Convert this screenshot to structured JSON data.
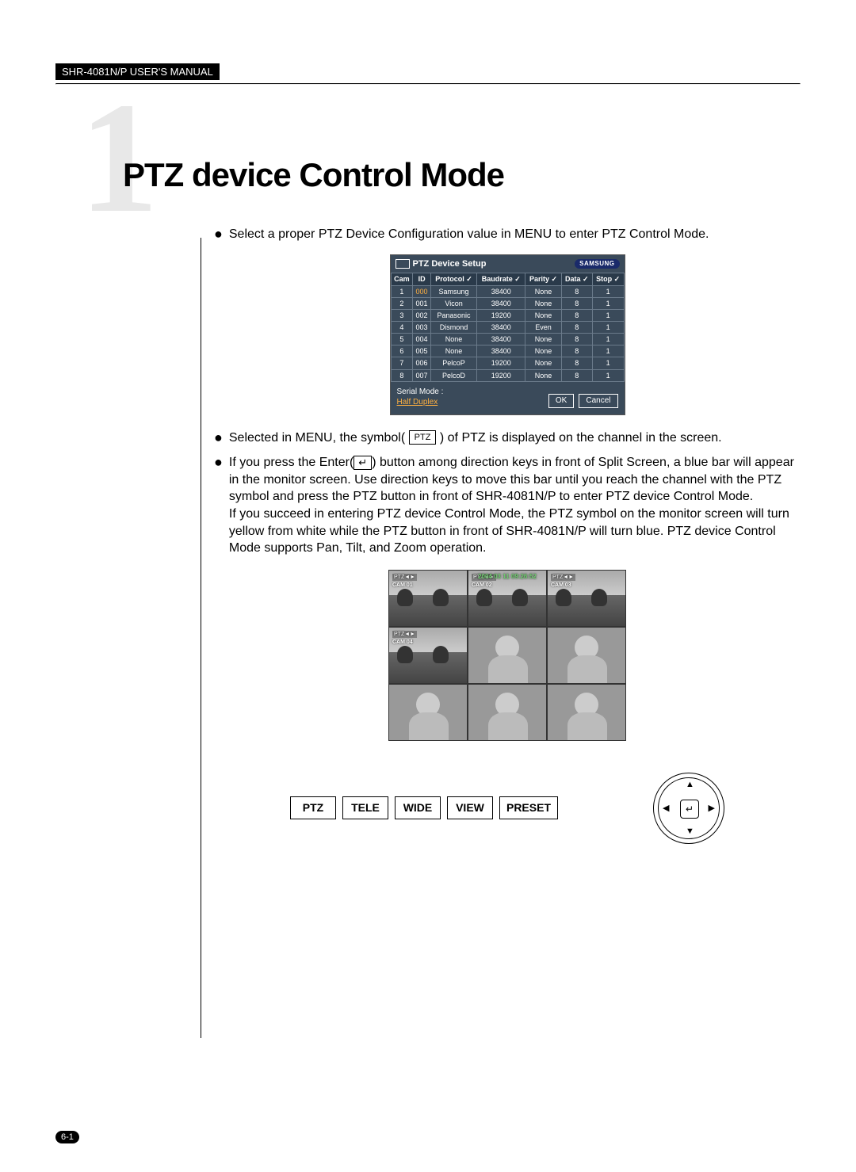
{
  "header": "SHR-4081N/P USER'S MANUAL",
  "chapter_number": "1",
  "title": "PTZ device Control Mode",
  "page_number": "6-1",
  "bullet1": "Select a proper PTZ Device Configuration value in MENU to enter PTZ Control Mode.",
  "bullet2_before": "Selected in MENU, the symbol(",
  "bullet2_symbol": "PTZ",
  "bullet2_after": ") of PTZ is displayed on the channel in the screen.",
  "bullet3_before": "If you press the Enter(",
  "bullet3_after": ") button among direction keys in front of Split Screen, a blue bar will appear in the monitor screen. Use direction keys to move this bar until you reach the channel with the PTZ symbol and press the PTZ button in front of SHR-4081N/P to enter PTZ device Control Mode.",
  "bullet3_para2": "If you succeed in entering PTZ device Control Mode, the PTZ symbol on the monitor screen will turn yellow from white while the PTZ button in front of SHR-4081N/P will turn blue. PTZ device Control Mode supports Pan, Tilt, and Zoom operation.",
  "enter_glyph": "↵",
  "setup": {
    "title": "PTZ Device Setup",
    "logo": "SAMSUNG",
    "checkmark": "✓",
    "columns": [
      "Cam",
      "ID",
      "Protocol",
      "Baudrate",
      "Parity",
      "Data",
      "Stop"
    ],
    "check_cols": [
      false,
      false,
      true,
      true,
      true,
      true,
      true
    ],
    "rows": [
      {
        "cam": "1",
        "id": "000",
        "protocol": "Samsung",
        "baud": "38400",
        "parity": "None",
        "data": "8",
        "stop": "1",
        "hl": true
      },
      {
        "cam": "2",
        "id": "001",
        "protocol": "Vicon",
        "baud": "38400",
        "parity": "None",
        "data": "8",
        "stop": "1",
        "hl": false
      },
      {
        "cam": "3",
        "id": "002",
        "protocol": "Panasonic",
        "baud": "19200",
        "parity": "None",
        "data": "8",
        "stop": "1",
        "hl": false
      },
      {
        "cam": "4",
        "id": "003",
        "protocol": "Dismond",
        "baud": "38400",
        "parity": "Even",
        "data": "8",
        "stop": "1",
        "hl": false
      },
      {
        "cam": "5",
        "id": "004",
        "protocol": "None",
        "baud": "38400",
        "parity": "None",
        "data": "8",
        "stop": "1",
        "hl": false
      },
      {
        "cam": "6",
        "id": "005",
        "protocol": "None",
        "baud": "38400",
        "parity": "None",
        "data": "8",
        "stop": "1",
        "hl": false
      },
      {
        "cam": "7",
        "id": "006",
        "protocol": "PelcoP",
        "baud": "19200",
        "parity": "None",
        "data": "8",
        "stop": "1",
        "hl": false
      },
      {
        "cam": "8",
        "id": "007",
        "protocol": "PelcoD",
        "baud": "19200",
        "parity": "None",
        "data": "8",
        "stop": "1",
        "hl": false
      }
    ],
    "serial_label": "Serial Mode :",
    "serial_value": "Half Duplex",
    "ok": "OK",
    "cancel": "Cancel"
  },
  "split": {
    "timestamp": "2004 03 11    09:26:52",
    "ptz_label": "PTZ◄►",
    "cams": [
      "CAM 01",
      "CAM 02",
      "CAM 03",
      "CAM 04"
    ]
  },
  "controls": {
    "ptz": "PTZ",
    "tele": "TELE",
    "wide": "WIDE",
    "view": "VIEW",
    "preset": "PRESET",
    "center": "↵",
    "up": "▲",
    "down": "▼",
    "left": "◀",
    "right": "▶"
  }
}
